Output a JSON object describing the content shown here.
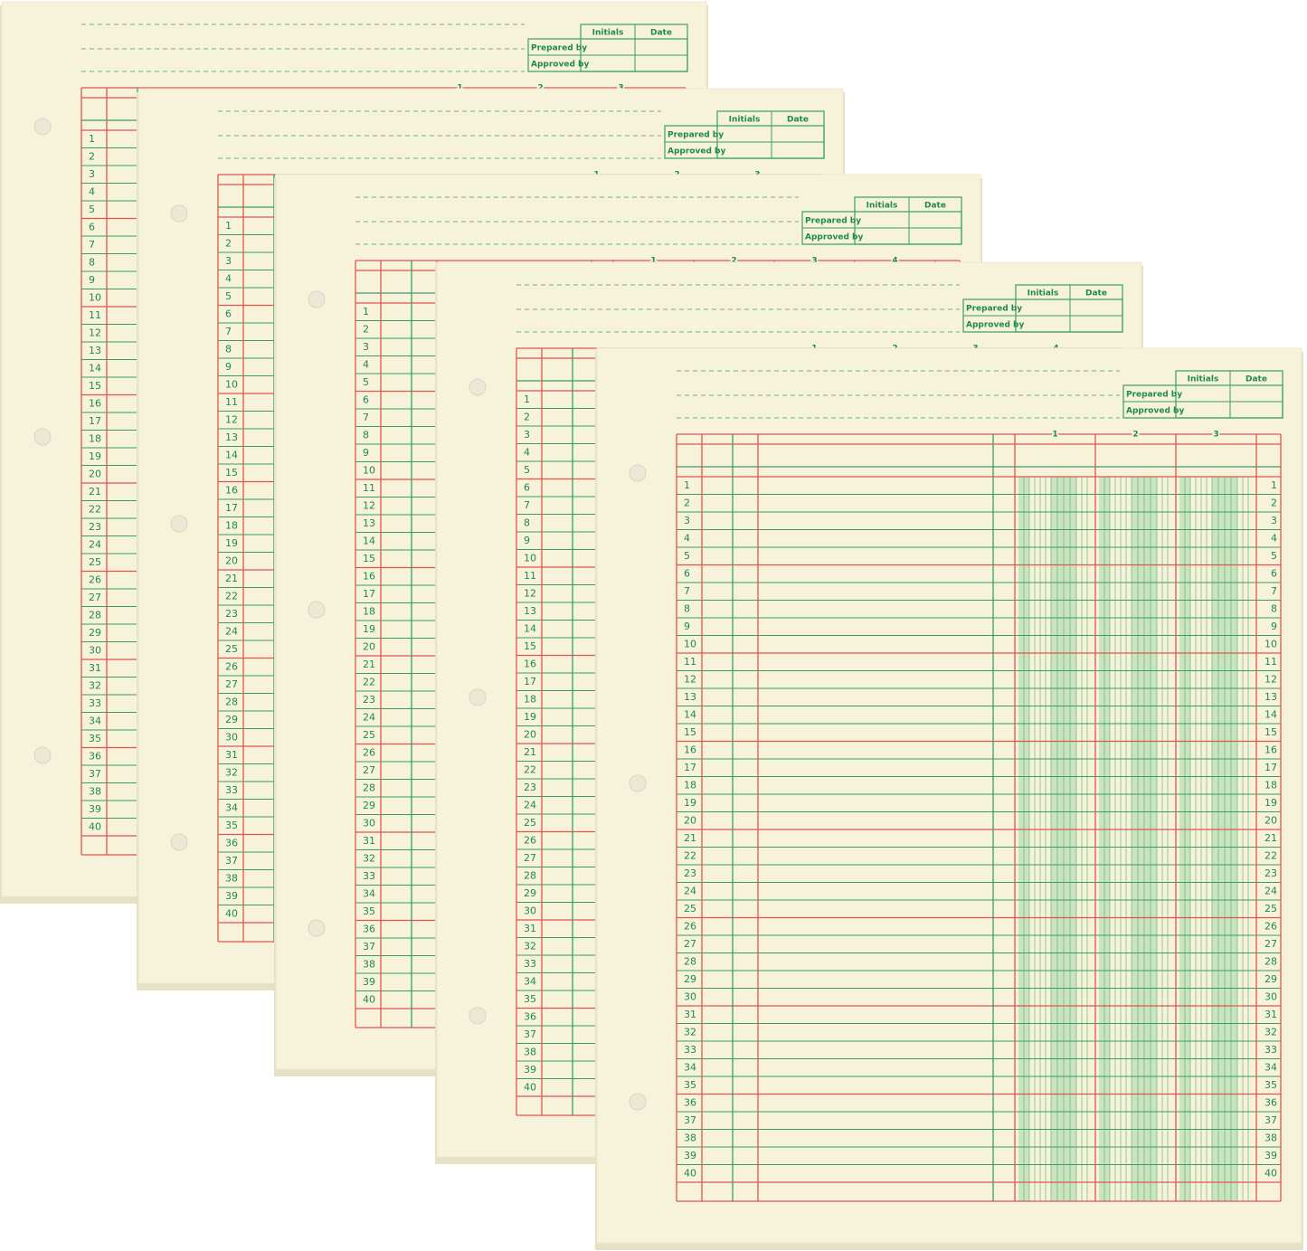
{
  "form": {
    "initials_label": "Initials",
    "date_label": "Date",
    "prepared_label": "Prepared by",
    "approved_label": "Approved by",
    "row_numbers": [
      1,
      2,
      3,
      4,
      5,
      6,
      7,
      8,
      9,
      10,
      11,
      12,
      13,
      14,
      15,
      16,
      17,
      18,
      19,
      20,
      21,
      22,
      23,
      24,
      25,
      26,
      27,
      28,
      29,
      30,
      31,
      32,
      33,
      34,
      35,
      36,
      37,
      38,
      39,
      40
    ],
    "sheets": [
      {
        "columns": [
          1,
          2,
          3
        ]
      },
      {
        "columns": [
          1,
          2,
          3
        ]
      },
      {
        "columns": [
          1,
          2,
          3,
          4
        ]
      },
      {
        "columns": [
          1,
          2,
          3,
          4
        ]
      },
      {
        "columns": [
          1,
          2,
          3
        ]
      }
    ]
  }
}
